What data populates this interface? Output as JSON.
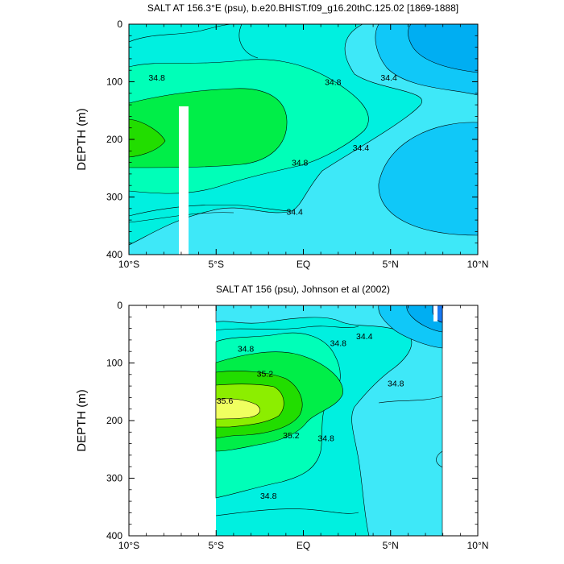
{
  "chart_data": [
    {
      "type": "contour",
      "title": "SALT AT 156.3°E (psu), b.e20.BHIST.f09_g16.20thC.125.02 [1869-1888]",
      "ylabel": "DEPTH (m)",
      "xlim": [
        -10,
        10
      ],
      "ylim": [
        0,
        400
      ],
      "x_ticks": [
        -10,
        -5,
        0,
        5,
        10
      ],
      "x_tick_labels": [
        "10°S",
        "5°S",
        "EQ",
        "5°N",
        "10°N"
      ],
      "y_ticks": [
        0,
        100,
        200,
        300,
        400
      ],
      "y_tick_labels": [
        "0",
        "100",
        "200",
        "300",
        "400"
      ],
      "contour_levels": [
        34.2,
        34.4,
        34.6,
        34.8,
        35.0,
        35.2
      ],
      "data_gap": {
        "x_range": [
          -7.2,
          -6.7
        ],
        "depth_range": [
          145,
          400
        ]
      },
      "contour_labels": [
        {
          "text": "34.8",
          "x": -8.4,
          "depth": 92
        },
        {
          "text": "34.8",
          "x": 1.7,
          "depth": 100
        },
        {
          "text": "34.4",
          "x": 4.9,
          "depth": 92
        },
        {
          "text": "34.8",
          "x": -0.2,
          "depth": 240
        },
        {
          "text": "34.4",
          "x": 3.3,
          "depth": 214
        },
        {
          "text": "34.4",
          "x": -0.5,
          "depth": 325
        }
      ]
    },
    {
      "type": "contour",
      "title": "SALT AT 156 (psu), Johnson et al (2002)",
      "ylabel": "DEPTH (m)",
      "xlim": [
        -10,
        10
      ],
      "ylim": [
        0,
        400
      ],
      "data_x_range": [
        -5,
        8
      ],
      "x_ticks": [
        -10,
        -5,
        0,
        5,
        10
      ],
      "x_tick_labels": [
        "10°S",
        "5°S",
        "EQ",
        "5°N",
        "10°N"
      ],
      "y_ticks": [
        0,
        100,
        200,
        300,
        400
      ],
      "y_tick_labels": [
        "0",
        "100",
        "200",
        "300",
        "400"
      ],
      "contour_levels": [
        34.2,
        34.4,
        34.6,
        34.8,
        35.0,
        35.2,
        35.4,
        35.6
      ],
      "contour_labels": [
        {
          "text": "34.8",
          "x": -3.3,
          "depth": 75
        },
        {
          "text": "34.8",
          "x": 2.0,
          "depth": 65
        },
        {
          "text": "34.4",
          "x": 3.5,
          "depth": 53
        },
        {
          "text": "35.2",
          "x": -2.2,
          "depth": 118
        },
        {
          "text": "35.6",
          "x": -4.5,
          "depth": 165
        },
        {
          "text": "34.8",
          "x": 5.3,
          "depth": 135
        },
        {
          "text": "35.2",
          "x": -0.7,
          "depth": 225
        },
        {
          "text": "34.8",
          "x": 1.3,
          "depth": 230
        },
        {
          "text": "34.8",
          "x": -2.0,
          "depth": 330
        }
      ]
    }
  ]
}
